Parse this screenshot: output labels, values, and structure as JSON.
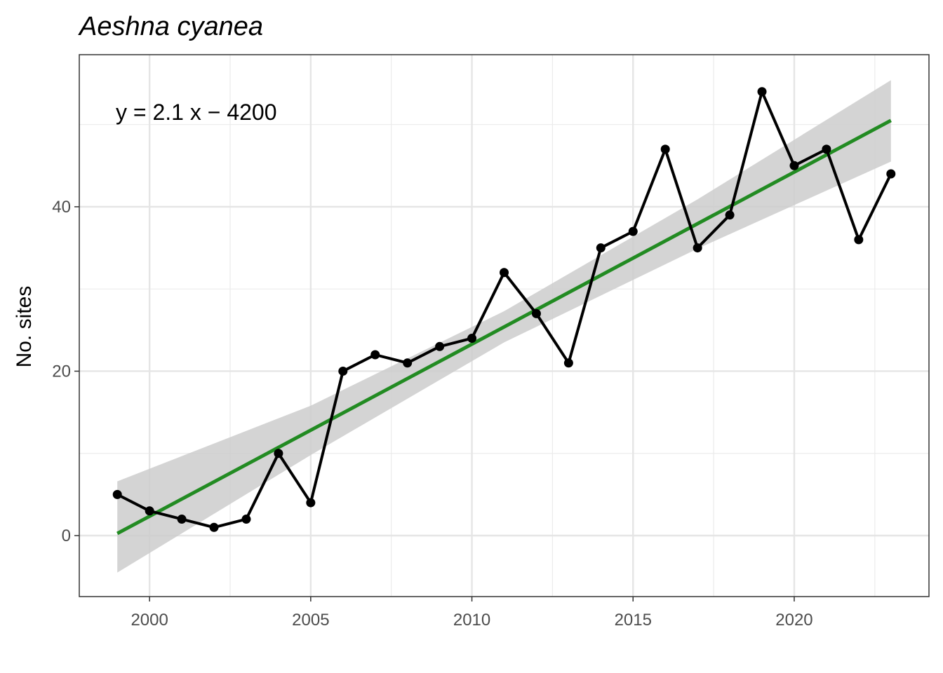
{
  "chart_data": {
    "type": "line",
    "title": "Aeshna cyanea",
    "y_label": "No. sites",
    "annotation": "y = 2.1 x − 4200",
    "x": [
      1999,
      2000,
      2001,
      2002,
      2003,
      2004,
      2005,
      2006,
      2007,
      2008,
      2009,
      2010,
      2011,
      2012,
      2013,
      2014,
      2015,
      2016,
      2017,
      2018,
      2019,
      2020,
      2021,
      2022,
      2023
    ],
    "series": [
      {
        "color": "#000000",
        "values": [
          5,
          3,
          2,
          1,
          2,
          10,
          4,
          20,
          22,
          21,
          23,
          24,
          32,
          27,
          21,
          35,
          37,
          47,
          35,
          39,
          54,
          45,
          47,
          36,
          44
        ]
      }
    ],
    "trend": {
      "color": "#228b22",
      "x": [
        1999,
        2023
      ],
      "values": [
        0.26,
        50.5
      ]
    },
    "ribbon": {
      "color": "#cccccc",
      "x": [
        1999,
        2005,
        2011,
        2017,
        2023
      ],
      "lower": [
        -4.5,
        9.8,
        23.5,
        34.9,
        45.5
      ],
      "upper": [
        6.6,
        15.8,
        27.3,
        40.9,
        55.4
      ]
    },
    "xlim": [
      1997.82,
      2024.18
    ],
    "ylim": [
      -7.42,
      58.5
    ],
    "xticks": [
      2000,
      2005,
      2010,
      2015,
      2020
    ],
    "yticks": [
      0,
      20,
      40
    ],
    "grid": true
  }
}
